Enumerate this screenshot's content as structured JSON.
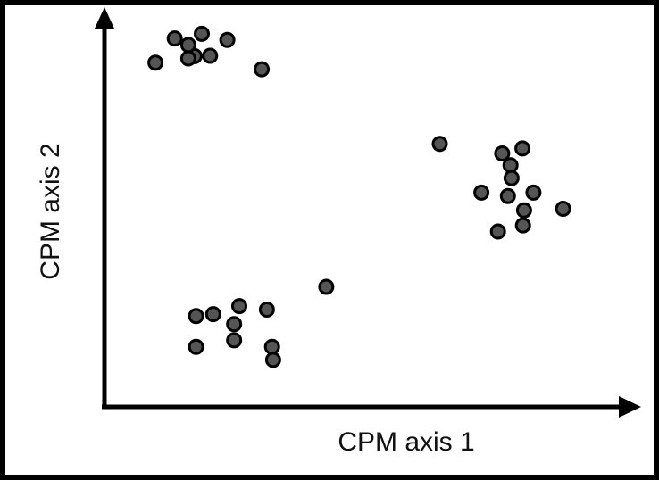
{
  "chart_data": {
    "type": "scatter",
    "title": "",
    "xlabel": "CPM axis 1",
    "ylabel": "CPM  axis 2",
    "xlim": [
      0,
      100
    ],
    "ylim": [
      0,
      100
    ],
    "grid": false,
    "legend": "none",
    "point_color": "#555555",
    "point_edge_color": "#000000",
    "points": [
      {
        "x": 17.3,
        "y": 91.2
      },
      {
        "x": 13.5,
        "y": 95.8
      },
      {
        "x": 16.1,
        "y": 94.1
      },
      {
        "x": 18.7,
        "y": 97.0
      },
      {
        "x": 16.1,
        "y": 90.6
      },
      {
        "x": 20.3,
        "y": 91.3
      },
      {
        "x": 23.6,
        "y": 95.4
      },
      {
        "x": 9.8,
        "y": 89.5
      },
      {
        "x": 30.2,
        "y": 87.8
      },
      {
        "x": 64.4,
        "y": 68.4
      },
      {
        "x": 76.4,
        "y": 65.9
      },
      {
        "x": 80.3,
        "y": 67.2
      },
      {
        "x": 78.0,
        "y": 62.8
      },
      {
        "x": 78.2,
        "y": 59.5
      },
      {
        "x": 72.4,
        "y": 55.7
      },
      {
        "x": 77.5,
        "y": 54.8
      },
      {
        "x": 82.4,
        "y": 55.7
      },
      {
        "x": 80.6,
        "y": 51.1
      },
      {
        "x": 88.1,
        "y": 51.5
      },
      {
        "x": 80.4,
        "y": 47.2
      },
      {
        "x": 75.6,
        "y": 45.6
      },
      {
        "x": 42.6,
        "y": 31.2
      },
      {
        "x": 25.9,
        "y": 26.2
      },
      {
        "x": 20.9,
        "y": 24.1
      },
      {
        "x": 17.6,
        "y": 23.6
      },
      {
        "x": 31.2,
        "y": 25.3
      },
      {
        "x": 24.9,
        "y": 21.5
      },
      {
        "x": 24.9,
        "y": 17.3
      },
      {
        "x": 17.6,
        "y": 15.6
      },
      {
        "x": 32.2,
        "y": 15.6
      },
      {
        "x": 32.4,
        "y": 12.2
      }
    ]
  }
}
